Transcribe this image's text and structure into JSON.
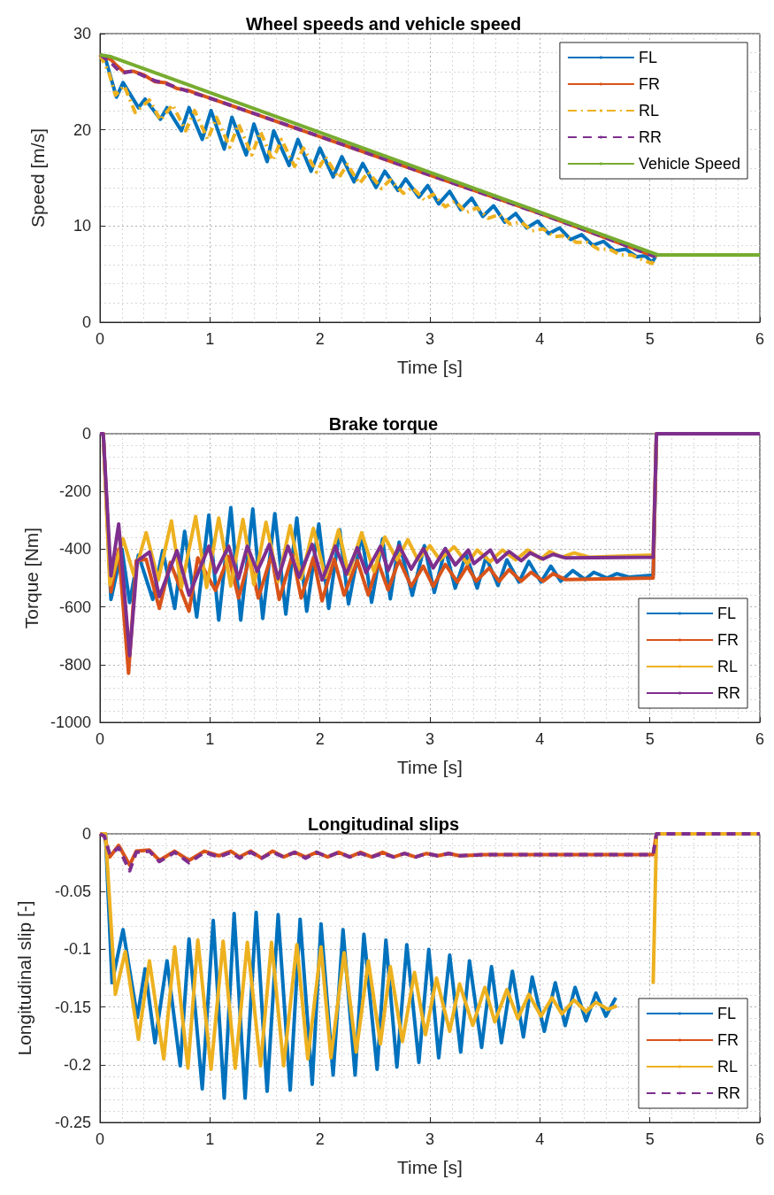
{
  "chart_data": [
    {
      "type": "line",
      "title": "Wheel speeds and vehicle speed",
      "xlabel": "Time [s]",
      "ylabel": "Speed [m/s]",
      "xlim": [
        0,
        6
      ],
      "xticks": [
        0,
        1,
        2,
        3,
        4,
        5,
        6
      ],
      "ylim": [
        0,
        30
      ],
      "yticks": [
        0,
        10,
        20,
        30
      ],
      "grid": true,
      "legend": "top right",
      "series": [
        {
          "name": "FL",
          "color": "#0072bd",
          "line_style": "solid",
          "x": [
            0,
            0.05,
            0.15,
            0.21,
            0.35,
            0.41,
            0.55,
            0.61,
            0.74,
            0.81,
            0.93,
            1.01,
            1.13,
            1.2,
            1.33,
            1.4,
            1.52,
            1.58,
            1.72,
            1.8,
            1.92,
            2.0,
            2.12,
            2.2,
            2.31,
            2.39,
            2.51,
            2.59,
            2.71,
            2.78,
            2.9,
            2.98,
            3.08,
            3.18,
            3.28,
            3.38,
            3.48,
            3.58,
            3.68,
            3.78,
            3.88,
            3.98,
            4.08,
            4.18,
            4.28,
            4.38,
            4.48,
            4.58,
            4.68,
            4.78,
            4.88,
            4.96,
            5.02,
            5.06,
            6
          ],
          "values": [
            27.8,
            27.4,
            23.4,
            24.9,
            22.3,
            23.2,
            21.1,
            22.3,
            19.9,
            22.3,
            19.0,
            22.0,
            18.0,
            21.3,
            17.4,
            20.6,
            16.7,
            19.9,
            16.3,
            19.0,
            15.7,
            18.1,
            15.1,
            17.2,
            14.6,
            16.5,
            14.0,
            15.7,
            13.7,
            14.9,
            13.0,
            14.2,
            12.3,
            13.6,
            11.7,
            12.9,
            11.0,
            12.1,
            10.4,
            11.3,
            9.8,
            10.5,
            9.2,
            9.8,
            8.6,
            9.1,
            8.0,
            8.4,
            7.4,
            7.6,
            6.8,
            6.9,
            6.2,
            7.0,
            7.0
          ]
        },
        {
          "name": "FR",
          "color": "#d95319",
          "line_style": "solid",
          "x": [
            0,
            0.1,
            0.15,
            0.22,
            0.3,
            0.4,
            0.5,
            0.6,
            0.7,
            0.8,
            1.0,
            1.5,
            2.0,
            2.5,
            3.0,
            3.5,
            4.0,
            4.5,
            5.03,
            5.06,
            6
          ],
          "values": [
            27.8,
            27.3,
            26.7,
            26.0,
            26.1,
            25.7,
            25.0,
            24.9,
            24.3,
            24.1,
            23.3,
            21.3,
            19.3,
            17.3,
            15.3,
            13.3,
            11.3,
            9.2,
            6.9,
            7.0,
            7.0
          ]
        },
        {
          "name": "RL",
          "color": "#edb120",
          "line_style": "dashdot",
          "x": [
            0,
            0.08,
            0.14,
            0.22,
            0.32,
            0.45,
            0.55,
            0.66,
            0.78,
            0.86,
            0.98,
            1.06,
            1.18,
            1.26,
            1.38,
            1.46,
            1.57,
            1.65,
            1.77,
            1.85,
            1.97,
            2.05,
            2.17,
            2.25,
            2.36,
            2.44,
            2.56,
            2.64,
            2.76,
            2.84,
            2.95,
            3.03,
            3.14,
            3.23,
            3.33,
            3.43,
            3.53,
            3.63,
            3.73,
            3.83,
            3.93,
            4.03,
            4.13,
            4.23,
            4.33,
            4.43,
            4.53,
            4.63,
            4.73,
            4.83,
            4.93,
            5.02,
            5.06,
            6
          ],
          "values": [
            27.8,
            26.0,
            23.6,
            24.6,
            21.8,
            23.1,
            21.0,
            22.6,
            19.9,
            22.0,
            19.0,
            21.3,
            18.2,
            20.6,
            17.4,
            19.8,
            16.8,
            19.0,
            16.2,
            18.1,
            15.6,
            17.2,
            15.0,
            16.4,
            14.4,
            15.6,
            13.9,
            14.8,
            13.4,
            14.0,
            12.7,
            13.3,
            12.0,
            12.6,
            11.4,
            11.9,
            10.8,
            11.2,
            10.2,
            10.4,
            9.5,
            9.7,
            8.9,
            9.0,
            8.3,
            8.3,
            7.6,
            7.6,
            7.0,
            7.0,
            6.5,
            6.1,
            7.0,
            7.0
          ]
        },
        {
          "name": "RR",
          "color": "#7e2f8e",
          "line_style": "dashed",
          "x": [
            0,
            0.1,
            0.15,
            0.2,
            0.3,
            0.4,
            0.5,
            0.6,
            0.7,
            0.8,
            1.0,
            1.5,
            2.0,
            2.5,
            3.0,
            3.5,
            4.0,
            4.5,
            5.03,
            5.06,
            6
          ],
          "values": [
            27.8,
            27.0,
            26.4,
            25.9,
            26.1,
            25.6,
            25.1,
            24.8,
            24.4,
            24.0,
            23.3,
            21.3,
            19.3,
            17.3,
            15.3,
            13.3,
            11.3,
            9.2,
            6.9,
            7.0,
            7.0
          ]
        },
        {
          "name": "Vehicle Speed",
          "color": "#77ac30",
          "line_style": "solid",
          "x": [
            0,
            0.1,
            5.05,
            5.07,
            6
          ],
          "values": [
            27.8,
            27.6,
            7.1,
            7.0,
            7.0
          ]
        }
      ]
    },
    {
      "type": "line",
      "title": "Brake torque",
      "xlabel": "Time [s]",
      "ylabel": "Torque [Nm]",
      "xlim": [
        0,
        6
      ],
      "xticks": [
        0,
        1,
        2,
        3,
        4,
        5,
        6
      ],
      "ylim": [
        -1000,
        0
      ],
      "yticks": [
        -1000,
        -800,
        -600,
        -400,
        -200,
        0
      ],
      "grid": true,
      "legend": "bottom right",
      "series": [
        {
          "name": "FL",
          "color": "#0072bd",
          "x": [
            0,
            0.03,
            0.1,
            0.2,
            0.27,
            0.35,
            0.48,
            0.57,
            0.68,
            0.77,
            0.88,
            0.99,
            1.08,
            1.19,
            1.28,
            1.39,
            1.48,
            1.59,
            1.69,
            1.79,
            1.88,
            1.99,
            2.08,
            2.18,
            2.26,
            2.38,
            2.47,
            2.57,
            2.64,
            2.72,
            2.84,
            2.95,
            3.04,
            3.14,
            3.23,
            3.33,
            3.43,
            3.51,
            3.62,
            3.7,
            3.81,
            3.9,
            4.01,
            4.1,
            4.19,
            4.3,
            4.41,
            4.49,
            4.61,
            4.7,
            4.81,
            5.03,
            5.06,
            6
          ],
          "values": [
            0,
            0,
            -574,
            -400,
            -585,
            -420,
            -574,
            -405,
            -605,
            -338,
            -635,
            -282,
            -646,
            -256,
            -646,
            -261,
            -640,
            -277,
            -625,
            -292,
            -615,
            -313,
            -605,
            -333,
            -590,
            -350,
            -584,
            -364,
            -572,
            -376,
            -560,
            -388,
            -550,
            -398,
            -535,
            -418,
            -535,
            -428,
            -526,
            -437,
            -514,
            -443,
            -514,
            -459,
            -511,
            -474,
            -505,
            -480,
            -500,
            -485,
            -497,
            -490,
            0,
            0
          ]
        },
        {
          "name": "FR",
          "color": "#d95319",
          "x": [
            0,
            0.03,
            0.1,
            0.17,
            0.26,
            0.33,
            0.42,
            0.54,
            0.64,
            0.81,
            0.89,
            1.05,
            1.17,
            1.26,
            1.36,
            1.44,
            1.56,
            1.63,
            1.75,
            1.83,
            1.94,
            2.02,
            2.13,
            2.22,
            2.34,
            2.44,
            2.53,
            2.62,
            2.72,
            2.83,
            2.94,
            3.03,
            3.14,
            3.25,
            3.34,
            3.42,
            3.54,
            3.63,
            3.72,
            3.83,
            3.92,
            4.03,
            4.12,
            4.23,
            5.03,
            5.06,
            6
          ],
          "values": [
            0,
            0,
            -548,
            -400,
            -830,
            -440,
            -435,
            -605,
            -446,
            -615,
            -430,
            -543,
            -425,
            -569,
            -430,
            -569,
            -420,
            -574,
            -420,
            -569,
            -430,
            -579,
            -435,
            -559,
            -440,
            -559,
            -446,
            -541,
            -437,
            -529,
            -459,
            -529,
            -453,
            -514,
            -459,
            -511,
            -465,
            -511,
            -471,
            -511,
            -480,
            -511,
            -485,
            -505,
            -500,
            0,
            0
          ]
        },
        {
          "name": "RL",
          "color": "#edb120",
          "x": [
            0,
            0.03,
            0.09,
            0.21,
            0.31,
            0.42,
            0.53,
            0.65,
            0.74,
            0.87,
            0.97,
            1.08,
            1.19,
            1.3,
            1.4,
            1.51,
            1.62,
            1.73,
            1.83,
            1.94,
            2.05,
            2.17,
            2.26,
            2.38,
            2.49,
            2.59,
            2.7,
            2.8,
            2.89,
            3.0,
            3.09,
            3.22,
            3.34,
            3.43,
            3.55,
            3.66,
            3.78,
            3.89,
            4.01,
            4.09,
            4.2,
            4.31,
            4.45,
            5.03,
            5.06,
            6
          ],
          "values": [
            0,
            0,
            -523,
            -364,
            -492,
            -343,
            -507,
            -302,
            -533,
            -287,
            -533,
            -292,
            -528,
            -297,
            -523,
            -307,
            -512,
            -318,
            -502,
            -328,
            -497,
            -333,
            -487,
            -343,
            -477,
            -358,
            -437,
            -367,
            -437,
            -388,
            -437,
            -392,
            -450,
            -403,
            -443,
            -403,
            -437,
            -403,
            -434,
            -408,
            -428,
            -413,
            -428,
            -420,
            0,
            0
          ]
        },
        {
          "name": "RR",
          "color": "#7e2f8e",
          "x": [
            0,
            0.03,
            0.1,
            0.17,
            0.27,
            0.34,
            0.45,
            0.54,
            0.7,
            0.81,
            0.99,
            1.05,
            1.17,
            1.26,
            1.34,
            1.43,
            1.54,
            1.62,
            1.71,
            1.81,
            1.93,
            2.02,
            2.14,
            2.24,
            2.34,
            2.42,
            2.55,
            2.62,
            2.72,
            2.83,
            2.94,
            3.03,
            3.14,
            3.23,
            3.35,
            3.4,
            3.55,
            3.61,
            3.72,
            3.83,
            3.91,
            4.03,
            4.12,
            4.23,
            5.03,
            5.06,
            6
          ],
          "values": [
            0,
            0,
            -492,
            -313,
            -769,
            -441,
            -410,
            -564,
            -405,
            -559,
            -390,
            -482,
            -390,
            -502,
            -390,
            -477,
            -384,
            -502,
            -390,
            -497,
            -384,
            -507,
            -390,
            -487,
            -395,
            -482,
            -390,
            -474,
            -388,
            -469,
            -398,
            -465,
            -398,
            -455,
            -403,
            -450,
            -403,
            -445,
            -408,
            -440,
            -413,
            -434,
            -418,
            -430,
            -428,
            0,
            0
          ]
        }
      ]
    },
    {
      "type": "line",
      "title": "Longitudinal slips",
      "xlabel": "Time [s]",
      "ylabel": "Longitudinal slip [-]",
      "xlim": [
        0,
        6
      ],
      "xticks": [
        0,
        1,
        2,
        3,
        4,
        5,
        6
      ],
      "ylim": [
        -0.25,
        0
      ],
      "yticks": [
        -0.25,
        -0.2,
        -0.15,
        -0.1,
        -0.05,
        0
      ],
      "grid": true,
      "legend": "bottom right",
      "series": [
        {
          "name": "FL",
          "color": "#0072bd",
          "line_style": "solid",
          "x": [
            0,
            0.05,
            0.11,
            0.21,
            0.34,
            0.41,
            0.5,
            0.61,
            0.73,
            0.81,
            0.93,
            1.03,
            1.13,
            1.22,
            1.32,
            1.42,
            1.52,
            1.62,
            1.73,
            1.82,
            1.93,
            2.01,
            2.12,
            2.21,
            2.32,
            2.4,
            2.52,
            2.6,
            2.7,
            2.79,
            2.9,
            2.99,
            3.08,
            3.18,
            3.28,
            3.36,
            3.47,
            3.56,
            3.65,
            3.75,
            3.85,
            3.93,
            4.04,
            4.14,
            4.23,
            4.32,
            4.42,
            4.51,
            4.6,
            4.69
          ],
          "values": [
            0,
            0,
            -0.129,
            -0.083,
            -0.159,
            -0.117,
            -0.181,
            -0.11,
            -0.201,
            -0.091,
            -0.221,
            -0.075,
            -0.229,
            -0.069,
            -0.229,
            -0.068,
            -0.223,
            -0.07,
            -0.222,
            -0.074,
            -0.217,
            -0.078,
            -0.209,
            -0.083,
            -0.209,
            -0.087,
            -0.204,
            -0.092,
            -0.202,
            -0.096,
            -0.198,
            -0.1,
            -0.194,
            -0.105,
            -0.189,
            -0.11,
            -0.185,
            -0.115,
            -0.181,
            -0.119,
            -0.176,
            -0.124,
            -0.171,
            -0.129,
            -0.166,
            -0.133,
            -0.162,
            -0.138,
            -0.158,
            -0.142
          ]
        },
        {
          "name": "FR",
          "color": "#d95319",
          "line_style": "solid",
          "x": [
            0,
            0.04,
            0.09,
            0.17,
            0.27,
            0.33,
            0.45,
            0.54,
            0.68,
            0.81,
            0.95,
            1.08,
            1.19,
            1.27,
            1.37,
            1.47,
            1.57,
            1.67,
            1.77,
            1.87,
            1.97,
            2.07,
            2.17,
            2.27,
            2.37,
            2.47,
            2.57,
            2.67,
            2.77,
            2.87,
            2.97,
            3.07,
            3.17,
            3.27,
            3.5,
            5.03,
            5.06,
            6
          ],
          "values": [
            0,
            -0.002,
            -0.02,
            -0.01,
            -0.027,
            -0.015,
            -0.014,
            -0.023,
            -0.015,
            -0.023,
            -0.015,
            -0.019,
            -0.015,
            -0.02,
            -0.015,
            -0.021,
            -0.015,
            -0.02,
            -0.016,
            -0.02,
            -0.016,
            -0.02,
            -0.016,
            -0.02,
            -0.016,
            -0.02,
            -0.016,
            -0.02,
            -0.017,
            -0.02,
            -0.017,
            -0.019,
            -0.017,
            -0.019,
            -0.018,
            -0.018,
            0,
            0
          ]
        },
        {
          "name": "RL",
          "color": "#edb120",
          "line_style": "solid",
          "x": [
            0,
            0.05,
            0.14,
            0.23,
            0.35,
            0.45,
            0.58,
            0.68,
            0.8,
            0.89,
            1.01,
            1.12,
            1.23,
            1.34,
            1.46,
            1.56,
            1.67,
            1.79,
            1.89,
            2.01,
            2.1,
            2.22,
            2.33,
            2.44,
            2.55,
            2.64,
            2.75,
            2.86,
            2.96,
            3.06,
            3.18,
            3.27,
            3.39,
            3.5,
            3.59,
            3.7,
            3.8,
            3.9,
            4.01,
            4.11,
            4.2,
            4.31,
            4.42,
            4.51,
            4.62,
            4.7,
            4.8,
            5.03,
            5.06,
            6
          ],
          "values": [
            0,
            0,
            -0.139,
            -0.102,
            -0.178,
            -0.11,
            -0.195,
            -0.098,
            -0.203,
            -0.092,
            -0.204,
            -0.093,
            -0.203,
            -0.094,
            -0.201,
            -0.094,
            -0.201,
            -0.096,
            -0.195,
            -0.098,
            -0.194,
            -0.103,
            -0.189,
            -0.11,
            -0.182,
            -0.115,
            -0.18,
            -0.12,
            -0.174,
            -0.125,
            -0.171,
            -0.13,
            -0.166,
            -0.133,
            -0.163,
            -0.135,
            -0.16,
            -0.139,
            -0.158,
            -0.142,
            -0.156,
            -0.144,
            -0.154,
            -0.146,
            -0.152,
            -0.149,
            null,
            -0.13,
            0,
            0
          ]
        },
        {
          "name": "RR",
          "color": "#7e2f8e",
          "line_style": "dashed",
          "x": [
            0,
            0.04,
            0.09,
            0.17,
            0.27,
            0.33,
            0.45,
            0.54,
            0.68,
            0.81,
            0.95,
            1.08,
            1.19,
            1.27,
            1.37,
            1.47,
            1.57,
            1.67,
            1.77,
            1.87,
            1.97,
            2.07,
            2.17,
            2.27,
            2.37,
            2.47,
            2.57,
            2.67,
            2.77,
            2.87,
            2.97,
            3.07,
            3.17,
            3.27,
            3.5,
            5.03,
            5.06,
            6
          ],
          "values": [
            0,
            -0.002,
            -0.018,
            -0.012,
            -0.032,
            -0.016,
            -0.015,
            -0.024,
            -0.016,
            -0.025,
            -0.016,
            -0.02,
            -0.016,
            -0.021,
            -0.016,
            -0.021,
            -0.016,
            -0.02,
            -0.016,
            -0.021,
            -0.016,
            -0.02,
            -0.016,
            -0.02,
            -0.017,
            -0.02,
            -0.017,
            -0.02,
            -0.017,
            -0.02,
            -0.017,
            -0.019,
            -0.017,
            -0.019,
            -0.018,
            -0.018,
            0,
            0
          ]
        }
      ]
    }
  ]
}
